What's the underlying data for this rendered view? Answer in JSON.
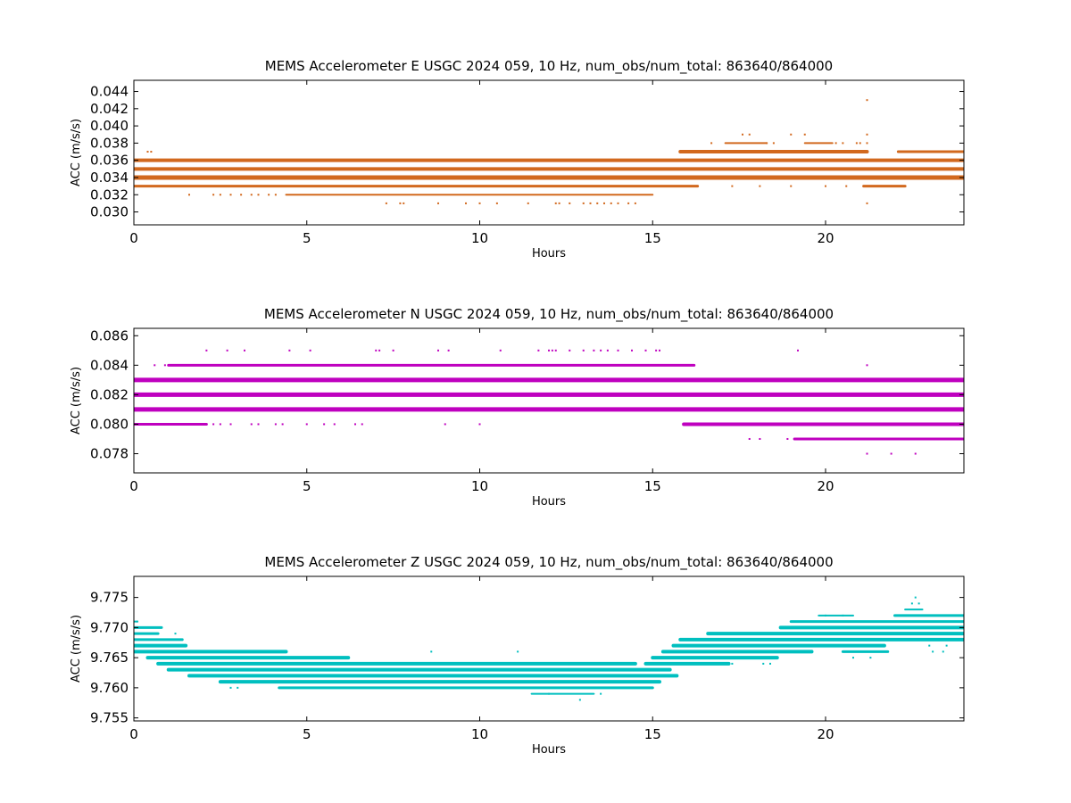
{
  "chart_data": [
    {
      "type": "scatter",
      "title": "MEMS Accelerometer E USGC 2024 059, 10 Hz, num_obs/num_total: 863640/864000",
      "xlabel": "Hours",
      "ylabel": "ACC (m/s/s)",
      "xlim": [
        0,
        24
      ],
      "ylim": [
        0.0285,
        0.0453
      ],
      "xticks": [
        0,
        5,
        10,
        15,
        20
      ],
      "yticks": [
        0.03,
        0.032,
        0.034,
        0.036,
        0.038,
        0.04,
        0.042,
        0.044
      ],
      "ytick_decimals": 3,
      "grid": false,
      "color": "#d2691e",
      "series": [
        {
          "levels": [
            {
              "y": 0.036,
              "x": [
                0,
                24
              ],
              "w": 4
            },
            {
              "y": 0.035,
              "x": [
                0,
                24
              ],
              "w": 4
            },
            {
              "y": 0.034,
              "x": [
                0,
                24
              ],
              "w": 5
            },
            {
              "y": 0.033,
              "x": [
                0,
                16.3
              ],
              "w": 3
            },
            {
              "y": 0.032,
              "x": [
                4.4,
                15
              ],
              "w": 2
            },
            {
              "y": 0.037,
              "x": [
                15.8,
                21.2
              ],
              "w": 4
            },
            {
              "y": 0.037,
              "x": [
                22.1,
                24
              ],
              "w": 3
            },
            {
              "y": 0.033,
              "x": [
                21.1,
                22.3
              ],
              "w": 3
            },
            {
              "y": 0.038,
              "x": [
                17.1,
                18.3
              ],
              "w": 2
            },
            {
              "y": 0.038,
              "x": [
                19.4,
                20.2
              ],
              "w": 2
            }
          ],
          "points": [
            [
              0.4,
              0.037
            ],
            [
              0.5,
              0.037
            ],
            [
              1.6,
              0.032
            ],
            [
              2.3,
              0.032
            ],
            [
              2.5,
              0.032
            ],
            [
              2.8,
              0.032
            ],
            [
              3.1,
              0.032
            ],
            [
              3.4,
              0.032
            ],
            [
              3.6,
              0.032
            ],
            [
              3.9,
              0.032
            ],
            [
              4.1,
              0.032
            ],
            [
              7.3,
              0.031
            ],
            [
              7.7,
              0.031
            ],
            [
              7.8,
              0.031
            ],
            [
              8.8,
              0.031
            ],
            [
              9.6,
              0.031
            ],
            [
              10.0,
              0.031
            ],
            [
              10.5,
              0.031
            ],
            [
              11.4,
              0.031
            ],
            [
              12.2,
              0.031
            ],
            [
              12.3,
              0.031
            ],
            [
              12.6,
              0.031
            ],
            [
              13.0,
              0.031
            ],
            [
              13.2,
              0.031
            ],
            [
              13.4,
              0.031
            ],
            [
              13.6,
              0.031
            ],
            [
              13.8,
              0.031
            ],
            [
              14.0,
              0.031
            ],
            [
              14.3,
              0.031
            ],
            [
              14.5,
              0.031
            ],
            [
              16.7,
              0.038
            ],
            [
              17.6,
              0.039
            ],
            [
              17.8,
              0.039
            ],
            [
              18.3,
              0.038
            ],
            [
              18.5,
              0.038
            ],
            [
              19.0,
              0.039
            ],
            [
              19.4,
              0.039
            ],
            [
              20.3,
              0.038
            ],
            [
              20.5,
              0.038
            ],
            [
              20.9,
              0.038
            ],
            [
              21.0,
              0.038
            ],
            [
              21.2,
              0.038
            ],
            [
              21.2,
              0.039
            ],
            [
              21.2,
              0.043
            ],
            [
              21.2,
              0.031
            ],
            [
              16.3,
              0.033
            ],
            [
              17.3,
              0.033
            ],
            [
              18.1,
              0.033
            ],
            [
              19.0,
              0.033
            ],
            [
              20.0,
              0.033
            ],
            [
              20.6,
              0.033
            ],
            [
              1.9,
              0.035
            ]
          ]
        }
      ]
    },
    {
      "type": "scatter",
      "title": "MEMS Accelerometer N USGC 2024 059, 10 Hz, num_obs/num_total: 863640/864000",
      "xlabel": "Hours",
      "ylabel": "ACC (m/s/s)",
      "xlim": [
        0,
        24
      ],
      "ylim": [
        0.0767,
        0.0865
      ],
      "xticks": [
        0,
        5,
        10,
        15,
        20
      ],
      "yticks": [
        0.078,
        0.08,
        0.082,
        0.084,
        0.086
      ],
      "ytick_decimals": 3,
      "grid": false,
      "color": "#bf00bf",
      "series": [
        {
          "levels": [
            {
              "y": 0.083,
              "x": [
                0,
                24
              ],
              "w": 5
            },
            {
              "y": 0.082,
              "x": [
                0,
                24
              ],
              "w": 5
            },
            {
              "y": 0.081,
              "x": [
                0,
                24
              ],
              "w": 5
            },
            {
              "y": 0.08,
              "x": [
                0,
                2.1
              ],
              "w": 3
            },
            {
              "y": 0.08,
              "x": [
                15.9,
                24
              ],
              "w": 4
            },
            {
              "y": 0.084,
              "x": [
                1.0,
                16.2
              ],
              "w": 3
            },
            {
              "y": 0.079,
              "x": [
                19.1,
                24
              ],
              "w": 3
            }
          ],
          "points": [
            [
              2.1,
              0.085
            ],
            [
              2.7,
              0.085
            ],
            [
              3.2,
              0.085
            ],
            [
              4.5,
              0.085
            ],
            [
              5.1,
              0.085
            ],
            [
              7.0,
              0.085
            ],
            [
              7.1,
              0.085
            ],
            [
              7.5,
              0.085
            ],
            [
              8.8,
              0.085
            ],
            [
              9.1,
              0.085
            ],
            [
              10.6,
              0.085
            ],
            [
              11.7,
              0.085
            ],
            [
              12.0,
              0.085
            ],
            [
              12.1,
              0.085
            ],
            [
              12.2,
              0.085
            ],
            [
              12.6,
              0.085
            ],
            [
              13.0,
              0.085
            ],
            [
              13.3,
              0.085
            ],
            [
              13.5,
              0.085
            ],
            [
              13.7,
              0.085
            ],
            [
              14.0,
              0.085
            ],
            [
              14.4,
              0.085
            ],
            [
              14.8,
              0.085
            ],
            [
              15.1,
              0.085
            ],
            [
              15.2,
              0.085
            ],
            [
              19.2,
              0.085
            ],
            [
              0.6,
              0.084
            ],
            [
              0.9,
              0.084
            ],
            [
              21.2,
              0.084
            ],
            [
              2.3,
              0.08
            ],
            [
              2.5,
              0.08
            ],
            [
              2.8,
              0.08
            ],
            [
              3.4,
              0.08
            ],
            [
              3.6,
              0.08
            ],
            [
              4.1,
              0.08
            ],
            [
              4.3,
              0.08
            ],
            [
              5.0,
              0.08
            ],
            [
              5.5,
              0.08
            ],
            [
              5.8,
              0.08
            ],
            [
              6.4,
              0.08
            ],
            [
              6.6,
              0.08
            ],
            [
              9.0,
              0.08
            ],
            [
              10.0,
              0.08
            ],
            [
              17.8,
              0.079
            ],
            [
              18.1,
              0.079
            ],
            [
              18.9,
              0.079
            ],
            [
              21.2,
              0.078
            ],
            [
              21.9,
              0.078
            ],
            [
              22.6,
              0.078
            ]
          ]
        }
      ]
    },
    {
      "type": "scatter",
      "title": "MEMS Accelerometer Z USGC 2024 059, 10 Hz, num_obs/num_total: 863640/864000",
      "xlabel": "Hours",
      "ylabel": "ACC (m/s/s)",
      "xlim": [
        0,
        24
      ],
      "ylim": [
        9.7545,
        9.7785
      ],
      "xticks": [
        0,
        5,
        10,
        15,
        20
      ],
      "yticks": [
        9.755,
        9.76,
        9.765,
        9.77,
        9.775
      ],
      "ytick_decimals": 3,
      "grid": false,
      "color": "#00bfbf",
      "series": [
        {
          "levels": [
            {
              "y": 9.771,
              "x": [
                0,
                0.1
              ],
              "w": 2
            },
            {
              "y": 9.77,
              "x": [
                0,
                0.8
              ],
              "w": 3
            },
            {
              "y": 9.769,
              "x": [
                0,
                0.7
              ],
              "w": 3
            },
            {
              "y": 9.768,
              "x": [
                0,
                1.4
              ],
              "w": 3
            },
            {
              "y": 9.767,
              "x": [
                0,
                1.5
              ],
              "w": 4
            },
            {
              "y": 9.766,
              "x": [
                0,
                4.4
              ],
              "w": 4
            },
            {
              "y": 9.765,
              "x": [
                0.4,
                6.2
              ],
              "w": 4
            },
            {
              "y": 9.764,
              "x": [
                0.7,
                14.5
              ],
              "w": 4
            },
            {
              "y": 9.763,
              "x": [
                1.0,
                15.5
              ],
              "w": 4
            },
            {
              "y": 9.762,
              "x": [
                1.6,
                15.7
              ],
              "w": 4
            },
            {
              "y": 9.761,
              "x": [
                2.5,
                15.2
              ],
              "w": 4
            },
            {
              "y": 9.76,
              "x": [
                4.2,
                15.0
              ],
              "w": 3
            },
            {
              "y": 9.759,
              "x": [
                11.5,
                13.3
              ],
              "w": 2
            },
            {
              "y": 9.764,
              "x": [
                14.8,
                17.2
              ],
              "w": 4
            },
            {
              "y": 9.765,
              "x": [
                15.0,
                18.6
              ],
              "w": 4
            },
            {
              "y": 9.766,
              "x": [
                15.3,
                19.6
              ],
              "w": 4
            },
            {
              "y": 9.767,
              "x": [
                15.6,
                21.7
              ],
              "w": 4
            },
            {
              "y": 9.768,
              "x": [
                15.8,
                24
              ],
              "w": 4
            },
            {
              "y": 9.769,
              "x": [
                16.6,
                24
              ],
              "w": 4
            },
            {
              "y": 9.77,
              "x": [
                18.7,
                24
              ],
              "w": 4
            },
            {
              "y": 9.771,
              "x": [
                19.0,
                24
              ],
              "w": 3
            },
            {
              "y": 9.772,
              "x": [
                19.8,
                20.8
              ],
              "w": 2
            },
            {
              "y": 9.772,
              "x": [
                22.0,
                24
              ],
              "w": 3
            },
            {
              "y": 9.773,
              "x": [
                22.3,
                22.8
              ],
              "w": 2
            },
            {
              "y": 9.766,
              "x": [
                20.5,
                21.8
              ],
              "w": 3
            }
          ],
          "points": [
            [
              0.1,
              9.771
            ],
            [
              1.2,
              9.769
            ],
            [
              1.4,
              9.768
            ],
            [
              1.1,
              9.768
            ],
            [
              2.8,
              9.76
            ],
            [
              3.0,
              9.76
            ],
            [
              8.6,
              9.766
            ],
            [
              11.1,
              9.766
            ],
            [
              12.0,
              9.759
            ],
            [
              12.9,
              9.758
            ],
            [
              13.5,
              9.759
            ],
            [
              19.4,
              9.766
            ],
            [
              20.8,
              9.765
            ],
            [
              21.3,
              9.765
            ],
            [
              21.0,
              9.766
            ],
            [
              22.5,
              9.774
            ],
            [
              22.6,
              9.775
            ],
            [
              22.7,
              9.774
            ],
            [
              23.1,
              9.766
            ],
            [
              23.4,
              9.766
            ],
            [
              17.3,
              9.764
            ],
            [
              18.2,
              9.764
            ],
            [
              18.4,
              9.764
            ],
            [
              20.0,
              9.772
            ],
            [
              20.5,
              9.772
            ],
            [
              23.0,
              9.767
            ],
            [
              23.5,
              9.767
            ]
          ]
        }
      ]
    }
  ]
}
